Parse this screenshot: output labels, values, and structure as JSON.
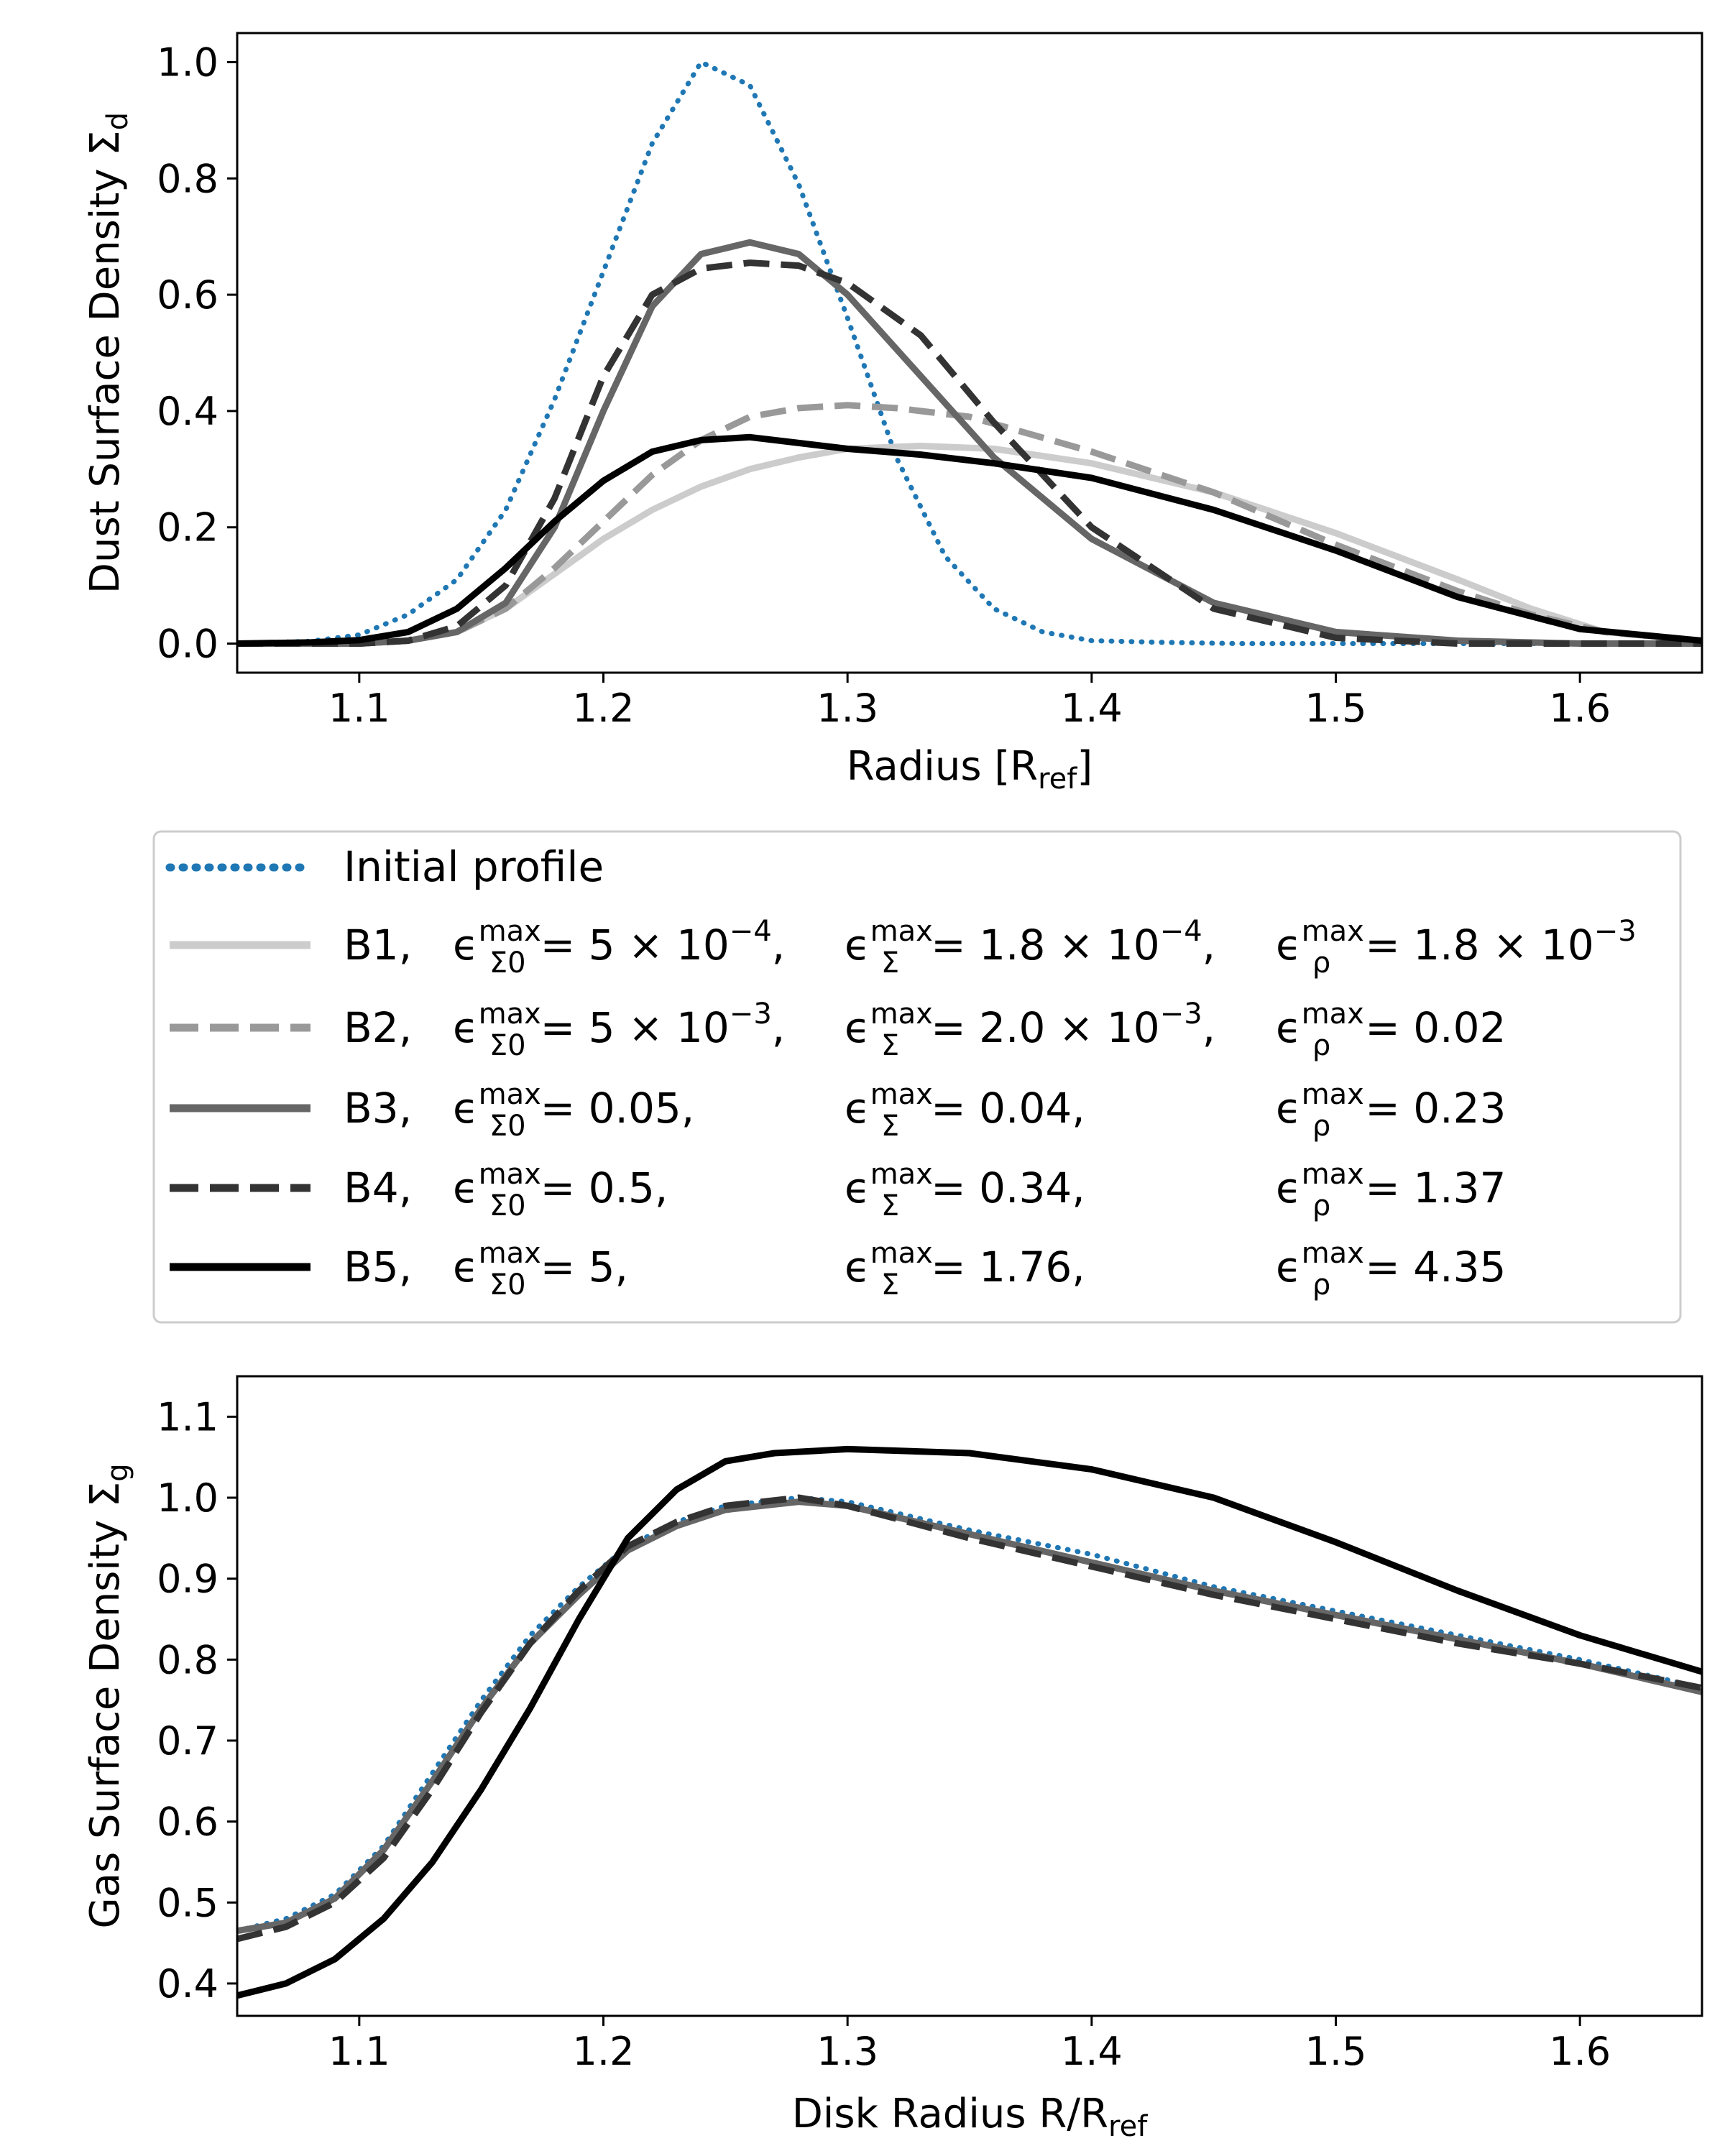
{
  "chart_data": [
    {
      "type": "line",
      "id": "dust",
      "xlabel": "Radius [R",
      "xlabel_sub": "ref",
      "xlabel_end": "]",
      "ylabel": "Dust Surface Density Σ",
      "ylabel_sub": "d",
      "xlim": [
        1.05,
        1.65
      ],
      "ylim": [
        -0.05,
        1.05
      ],
      "xticks": [
        1.1,
        1.2,
        1.3,
        1.4,
        1.5,
        1.6
      ],
      "xtick_labels": [
        "1.1",
        "1.2",
        "1.3",
        "1.4",
        "1.5",
        "1.6"
      ],
      "yticks": [
        0.0,
        0.2,
        0.4,
        0.6,
        0.8,
        1.0
      ],
      "ytick_labels": [
        "0.0",
        "0.2",
        "0.4",
        "0.6",
        "0.8",
        "1.0"
      ],
      "series": [
        {
          "name": "Initial profile",
          "style": "dotted",
          "color": "#1f77b4",
          "x": [
            1.05,
            1.08,
            1.1,
            1.12,
            1.14,
            1.16,
            1.18,
            1.2,
            1.22,
            1.24,
            1.26,
            1.28,
            1.3,
            1.32,
            1.34,
            1.36,
            1.38,
            1.4,
            1.43,
            1.46,
            1.5,
            1.55,
            1.6,
            1.65
          ],
          "y": [
            0.0,
            0.004,
            0.015,
            0.05,
            0.11,
            0.23,
            0.42,
            0.64,
            0.86,
            1.0,
            0.96,
            0.79,
            0.56,
            0.32,
            0.15,
            0.06,
            0.02,
            0.005,
            0.002,
            0.0,
            0.0,
            0.0,
            0.0,
            0.0
          ]
        },
        {
          "name": "B1",
          "style": "solid",
          "color": "#cccccc",
          "x": [
            1.05,
            1.1,
            1.12,
            1.14,
            1.16,
            1.18,
            1.2,
            1.22,
            1.24,
            1.26,
            1.28,
            1.3,
            1.33,
            1.36,
            1.4,
            1.45,
            1.5,
            1.55,
            1.58,
            1.61,
            1.65
          ],
          "y": [
            0.0,
            0.0,
            0.005,
            0.02,
            0.06,
            0.12,
            0.18,
            0.23,
            0.27,
            0.3,
            0.32,
            0.335,
            0.34,
            0.335,
            0.31,
            0.26,
            0.19,
            0.11,
            0.06,
            0.02,
            0.005
          ]
        },
        {
          "name": "B2",
          "style": "dashed",
          "color": "#999999",
          "x": [
            1.05,
            1.1,
            1.12,
            1.14,
            1.16,
            1.18,
            1.2,
            1.22,
            1.24,
            1.26,
            1.28,
            1.3,
            1.32,
            1.35,
            1.4,
            1.45,
            1.5,
            1.55,
            1.58,
            1.61,
            1.65
          ],
          "y": [
            0.0,
            0.0,
            0.005,
            0.02,
            0.06,
            0.13,
            0.21,
            0.29,
            0.35,
            0.39,
            0.405,
            0.41,
            0.405,
            0.39,
            0.33,
            0.26,
            0.17,
            0.09,
            0.05,
            0.02,
            0.005
          ]
        },
        {
          "name": "B3",
          "style": "solid",
          "color": "#666666",
          "x": [
            1.05,
            1.1,
            1.12,
            1.14,
            1.16,
            1.18,
            1.2,
            1.22,
            1.24,
            1.26,
            1.28,
            1.3,
            1.33,
            1.36,
            1.4,
            1.45,
            1.5,
            1.55,
            1.6,
            1.65
          ],
          "y": [
            0.0,
            0.0,
            0.005,
            0.02,
            0.07,
            0.2,
            0.4,
            0.58,
            0.67,
            0.69,
            0.67,
            0.6,
            0.46,
            0.32,
            0.18,
            0.07,
            0.02,
            0.005,
            0.0,
            0.0
          ]
        },
        {
          "name": "B4",
          "style": "dashed",
          "color": "#333333",
          "x": [
            1.05,
            1.1,
            1.12,
            1.14,
            1.16,
            1.18,
            1.2,
            1.22,
            1.24,
            1.26,
            1.28,
            1.3,
            1.33,
            1.36,
            1.4,
            1.45,
            1.5,
            1.55,
            1.6,
            1.65
          ],
          "y": [
            0.0,
            0.0,
            0.005,
            0.03,
            0.1,
            0.25,
            0.46,
            0.6,
            0.645,
            0.655,
            0.65,
            0.62,
            0.53,
            0.38,
            0.2,
            0.06,
            0.01,
            0.0,
            0.0,
            0.0
          ]
        },
        {
          "name": "B5",
          "style": "solid",
          "color": "#000000",
          "x": [
            1.05,
            1.08,
            1.1,
            1.12,
            1.14,
            1.16,
            1.18,
            1.2,
            1.22,
            1.24,
            1.26,
            1.28,
            1.3,
            1.33,
            1.36,
            1.4,
            1.45,
            1.5,
            1.55,
            1.6,
            1.65
          ],
          "y": [
            0.0,
            0.002,
            0.006,
            0.02,
            0.06,
            0.13,
            0.21,
            0.28,
            0.33,
            0.35,
            0.355,
            0.345,
            0.335,
            0.325,
            0.31,
            0.285,
            0.23,
            0.16,
            0.08,
            0.025,
            0.005
          ]
        }
      ]
    },
    {
      "type": "line",
      "id": "gas",
      "xlabel": "Disk Radius R/R",
      "xlabel_sub": "ref",
      "xlabel_end": "",
      "ylabel": "Gas Surface Density Σ",
      "ylabel_sub": "g",
      "xlim": [
        1.05,
        1.65
      ],
      "ylim": [
        0.36,
        1.15
      ],
      "xticks": [
        1.1,
        1.2,
        1.3,
        1.4,
        1.5,
        1.6
      ],
      "xtick_labels": [
        "1.1",
        "1.2",
        "1.3",
        "1.4",
        "1.5",
        "1.6"
      ],
      "yticks": [
        0.4,
        0.5,
        0.6,
        0.7,
        0.8,
        0.9,
        1.0,
        1.1
      ],
      "ytick_labels": [
        "0.4",
        "0.5",
        "0.6",
        "0.7",
        "0.8",
        "0.9",
        "1.0",
        "1.1"
      ],
      "series": [
        {
          "name": "Initial profile",
          "style": "dotted",
          "color": "#1f77b4",
          "x": [
            1.05,
            1.07,
            1.09,
            1.11,
            1.13,
            1.15,
            1.17,
            1.19,
            1.21,
            1.23,
            1.25,
            1.28,
            1.3,
            1.35,
            1.4,
            1.45,
            1.5,
            1.55,
            1.6,
            1.65
          ],
          "y": [
            0.465,
            0.48,
            0.51,
            0.57,
            0.66,
            0.75,
            0.83,
            0.89,
            0.94,
            0.97,
            0.99,
            1.0,
            0.995,
            0.96,
            0.93,
            0.89,
            0.86,
            0.83,
            0.8,
            0.765
          ]
        },
        {
          "name": "B3",
          "style": "solid",
          "color": "#666666",
          "x": [
            1.05,
            1.07,
            1.09,
            1.11,
            1.13,
            1.15,
            1.17,
            1.19,
            1.21,
            1.23,
            1.25,
            1.28,
            1.3,
            1.35,
            1.4,
            1.45,
            1.5,
            1.55,
            1.6,
            1.65
          ],
          "y": [
            0.465,
            0.475,
            0.505,
            0.565,
            0.65,
            0.74,
            0.82,
            0.88,
            0.935,
            0.965,
            0.985,
            0.995,
            0.99,
            0.955,
            0.92,
            0.885,
            0.855,
            0.825,
            0.795,
            0.76
          ]
        },
        {
          "name": "B4",
          "style": "dashed",
          "color": "#333333",
          "x": [
            1.05,
            1.07,
            1.09,
            1.11,
            1.13,
            1.15,
            1.17,
            1.19,
            1.21,
            1.23,
            1.25,
            1.28,
            1.3,
            1.35,
            1.4,
            1.45,
            1.5,
            1.55,
            1.6,
            1.65
          ],
          "y": [
            0.455,
            0.47,
            0.5,
            0.555,
            0.64,
            0.735,
            0.82,
            0.885,
            0.94,
            0.97,
            0.99,
            1.0,
            0.99,
            0.95,
            0.915,
            0.88,
            0.85,
            0.82,
            0.795,
            0.765
          ]
        },
        {
          "name": "B5",
          "style": "solid",
          "color": "#000000",
          "x": [
            1.05,
            1.07,
            1.09,
            1.11,
            1.13,
            1.15,
            1.17,
            1.19,
            1.21,
            1.23,
            1.25,
            1.27,
            1.3,
            1.35,
            1.4,
            1.45,
            1.5,
            1.55,
            1.6,
            1.65
          ],
          "y": [
            0.385,
            0.4,
            0.43,
            0.48,
            0.55,
            0.64,
            0.74,
            0.85,
            0.95,
            1.01,
            1.045,
            1.055,
            1.06,
            1.055,
            1.035,
            1.0,
            0.945,
            0.885,
            0.83,
            0.785
          ]
        }
      ]
    }
  ],
  "legend": {
    "entries": [
      {
        "name": "Initial profile",
        "style": "dotted",
        "color": "#1f77b4",
        "single": "Initial profile"
      },
      {
        "name": "B1",
        "style": "solid",
        "color": "#cccccc",
        "label": "B1,",
        "e1": "= 5 × 10",
        "e1_exp": "−4",
        "e1_end": ",",
        "e2": "= 1.8 × 10",
        "e2_exp": "−4",
        "e2_end": ",",
        "e3": "= 1.8 × 10",
        "e3_exp": "−3"
      },
      {
        "name": "B2",
        "style": "dashed",
        "color": "#999999",
        "label": "B2,",
        "e1": "= 5 × 10",
        "e1_exp": "−3",
        "e1_end": ",",
        "e2": "= 2.0 × 10",
        "e2_exp": "−3",
        "e2_end": ",",
        "e3": "= 0.02",
        "e3_exp": ""
      },
      {
        "name": "B3",
        "style": "solid",
        "color": "#666666",
        "label": "B3,",
        "e1": "= 0.05,",
        "e1_exp": "",
        "e1_end": "",
        "e2": "= 0.04,",
        "e2_exp": "",
        "e2_end": "",
        "e3": "= 0.23",
        "e3_exp": ""
      },
      {
        "name": "B4",
        "style": "dashed",
        "color": "#333333",
        "label": "B4,",
        "e1": "= 0.5,",
        "e1_exp": "",
        "e1_end": "",
        "e2": "= 0.34,",
        "e2_exp": "",
        "e2_end": "",
        "e3": "= 1.37",
        "e3_exp": ""
      },
      {
        "name": "B5",
        "style": "solid",
        "color": "#000000",
        "label": "B5,",
        "e1": "= 5,",
        "e1_exp": "",
        "e1_end": "",
        "e2": "= 1.76,",
        "e2_exp": "",
        "e2_end": "",
        "e3": "= 4.35",
        "e3_exp": ""
      }
    ],
    "eps": "ϵ",
    "sup": "max",
    "sub1": "Σ0",
    "sub2": "Σ",
    "sub3": "ρ"
  }
}
